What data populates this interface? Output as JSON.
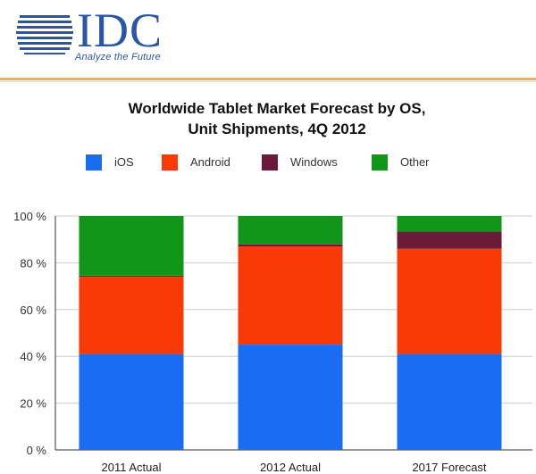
{
  "brand": {
    "logo_text": "IDC",
    "tagline": "Analyze the Future"
  },
  "colors": {
    "ios": "#1a6cf2",
    "android": "#fa3a06",
    "windows": "#6b1a3a",
    "other": "#109618",
    "brand_blue": "#2a56a8",
    "accent_rule": "#e9b24a"
  },
  "chart_data": {
    "type": "bar",
    "stacked": true,
    "title_lines": [
      "Worldwide Tablet Market Forecast by OS,",
      "Unit Shipments, 4Q 2012"
    ],
    "categories": [
      "2011 Actual",
      "2012 Actual",
      "2017 Forecast"
    ],
    "series": [
      {
        "name": "iOS",
        "color_key": "ios",
        "values": [
          41.0,
          45.0,
          41.0
        ]
      },
      {
        "name": "Android",
        "color_key": "android",
        "values": [
          33.0,
          42.0,
          45.0
        ]
      },
      {
        "name": "Windows",
        "color_key": "windows",
        "values": [
          0.5,
          0.9,
          7.3
        ]
      },
      {
        "name": "Other",
        "color_key": "other",
        "values": [
          25.5,
          12.1,
          6.7
        ]
      }
    ],
    "ylim": [
      0,
      100
    ],
    "yticks": [
      "0 %",
      "20 %",
      "40 %",
      "60 %",
      "80 %",
      "100 %"
    ],
    "ytick_values": [
      0,
      20,
      40,
      60,
      80,
      100
    ],
    "legend_position": "top",
    "grid": true,
    "xlabel": "",
    "ylabel": ""
  }
}
